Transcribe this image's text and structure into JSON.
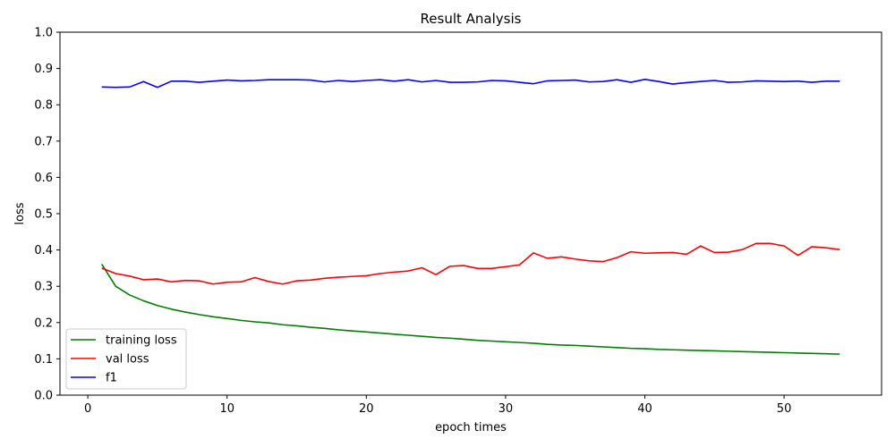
{
  "chart_data": {
    "type": "line",
    "title": "Result Analysis",
    "xlabel": "epoch times",
    "ylabel": "loss",
    "xlim": [
      -2,
      57
    ],
    "ylim": [
      0,
      1.0
    ],
    "xticks": [
      0,
      10,
      20,
      30,
      40,
      50
    ],
    "yticks": [
      0.0,
      0.1,
      0.2,
      0.3,
      0.4,
      0.5,
      0.6,
      0.7,
      0.8,
      0.9,
      1.0
    ],
    "ytick_labels": [
      "0.0",
      "0.1",
      "0.2",
      "0.3",
      "0.4",
      "0.5",
      "0.6",
      "0.7",
      "0.8",
      "0.9",
      "1.0"
    ],
    "grid": false,
    "legend_position": "lower-left",
    "x": [
      1,
      2,
      3,
      4,
      5,
      6,
      7,
      8,
      9,
      10,
      11,
      12,
      13,
      14,
      15,
      16,
      17,
      18,
      19,
      20,
      21,
      22,
      23,
      24,
      25,
      26,
      27,
      28,
      29,
      30,
      31,
      32,
      33,
      34,
      35,
      36,
      37,
      38,
      39,
      40,
      41,
      42,
      43,
      44,
      45,
      46,
      47,
      48,
      49,
      50,
      51,
      52,
      53,
      54
    ],
    "series": [
      {
        "name": "training loss",
        "color": "#008000",
        "values": [
          0.361,
          0.3,
          0.276,
          0.26,
          0.247,
          0.237,
          0.229,
          0.222,
          0.216,
          0.211,
          0.206,
          0.202,
          0.199,
          0.194,
          0.191,
          0.187,
          0.184,
          0.18,
          0.177,
          0.174,
          0.171,
          0.168,
          0.165,
          0.162,
          0.159,
          0.157,
          0.154,
          0.151,
          0.149,
          0.147,
          0.145,
          0.143,
          0.14,
          0.138,
          0.137,
          0.135,
          0.133,
          0.131,
          0.129,
          0.128,
          0.126,
          0.125,
          0.124,
          0.123,
          0.122,
          0.121,
          0.12,
          0.119,
          0.118,
          0.117,
          0.116,
          0.115,
          0.114,
          0.113
        ]
      },
      {
        "name": "val loss",
        "color": "#ff0000",
        "values": [
          0.35,
          0.335,
          0.328,
          0.318,
          0.32,
          0.312,
          0.316,
          0.315,
          0.306,
          0.311,
          0.312,
          0.324,
          0.313,
          0.306,
          0.315,
          0.317,
          0.322,
          0.325,
          0.327,
          0.329,
          0.335,
          0.339,
          0.342,
          0.351,
          0.332,
          0.355,
          0.357,
          0.349,
          0.349,
          0.354,
          0.359,
          0.392,
          0.377,
          0.381,
          0.375,
          0.37,
          0.368,
          0.379,
          0.395,
          0.391,
          0.392,
          0.393,
          0.388,
          0.411,
          0.393,
          0.394,
          0.401,
          0.418,
          0.418,
          0.411,
          0.385,
          0.409,
          0.406,
          0.401
        ]
      },
      {
        "name": "f1",
        "color": "#0000ff",
        "values": [
          0.849,
          0.848,
          0.849,
          0.864,
          0.848,
          0.865,
          0.865,
          0.862,
          0.865,
          0.868,
          0.866,
          0.867,
          0.869,
          0.869,
          0.869,
          0.868,
          0.863,
          0.867,
          0.864,
          0.867,
          0.869,
          0.865,
          0.869,
          0.863,
          0.867,
          0.862,
          0.862,
          0.863,
          0.867,
          0.866,
          0.862,
          0.858,
          0.866,
          0.867,
          0.868,
          0.863,
          0.864,
          0.869,
          0.862,
          0.87,
          0.864,
          0.857,
          0.861,
          0.864,
          0.867,
          0.862,
          0.863,
          0.866,
          0.865,
          0.864,
          0.865,
          0.862,
          0.865,
          0.865
        ]
      }
    ]
  }
}
